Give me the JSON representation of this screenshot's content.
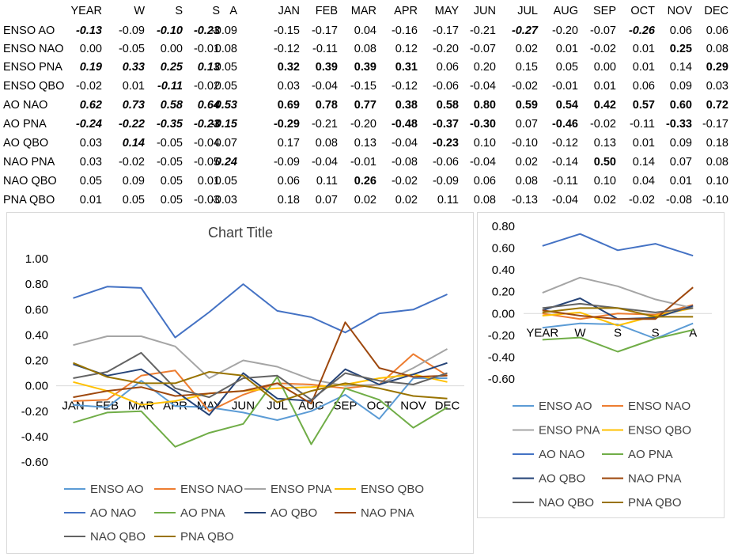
{
  "table": {
    "columns": [
      "YEAR",
      "W",
      "S",
      "S",
      "A",
      "JAN",
      "FEB",
      "MAR",
      "APR",
      "MAY",
      "JUN",
      "JUL",
      "AUG",
      "SEP",
      "OCT",
      "NOV",
      "DEC"
    ],
    "rows": [
      {
        "label": "ENSO AO",
        "values": [
          "-0.13",
          "-0.09",
          "-0.10",
          "-0.23",
          "-0.09",
          "-0.15",
          "-0.17",
          "0.04",
          "-0.16",
          "-0.17",
          "-0.21",
          "-0.27",
          "-0.20",
          "-0.07",
          "-0.26",
          "0.06",
          "0.06"
        ],
        "styles": [
          "bi",
          "",
          "bi",
          "bi",
          "",
          "",
          "",
          "",
          "",
          "",
          "",
          "bi",
          "",
          "",
          "bi",
          "",
          ""
        ]
      },
      {
        "label": "ENSO NAO",
        "values": [
          "0.00",
          "-0.05",
          "0.00",
          "-0.01",
          "0.08",
          "-0.12",
          "-0.11",
          "0.08",
          "0.12",
          "-0.20",
          "-0.07",
          "0.02",
          "0.01",
          "-0.02",
          "0.01",
          "0.25",
          "0.08"
        ],
        "styles": [
          "",
          "",
          "",
          "",
          "",
          "",
          "",
          "",
          "",
          "",
          "",
          "",
          "",
          "",
          "",
          "b",
          ""
        ]
      },
      {
        "label": "ENSO PNA",
        "values": [
          "0.19",
          "0.33",
          "0.25",
          "0.13",
          "0.05",
          "0.32",
          "0.39",
          "0.39",
          "0.31",
          "0.06",
          "0.20",
          "0.15",
          "0.05",
          "0.00",
          "0.01",
          "0.14",
          "0.29"
        ],
        "styles": [
          "bi",
          "bi",
          "bi",
          "bi",
          "",
          "b",
          "b",
          "b",
          "b",
          "",
          "",
          "",
          "",
          "",
          "",
          "",
          "b"
        ]
      },
      {
        "label": "ENSO QBO",
        "values": [
          "-0.02",
          "0.01",
          "-0.11",
          "-0.02",
          "0.05",
          "0.03",
          "-0.04",
          "-0.15",
          "-0.12",
          "-0.06",
          "-0.04",
          "-0.02",
          "-0.01",
          "0.01",
          "0.06",
          "0.09",
          "0.03"
        ],
        "styles": [
          "",
          "",
          "bi",
          "",
          "",
          "",
          "",
          "",
          "",
          "",
          "",
          "",
          "",
          "",
          "",
          "",
          ""
        ]
      },
      {
        "label": "AO NAO",
        "values": [
          "0.62",
          "0.73",
          "0.58",
          "0.64",
          "0.53",
          "0.69",
          "0.78",
          "0.77",
          "0.38",
          "0.58",
          "0.80",
          "0.59",
          "0.54",
          "0.42",
          "0.57",
          "0.60",
          "0.72"
        ],
        "styles": [
          "bi",
          "bi",
          "bi",
          "bi",
          "bi",
          "b",
          "b",
          "b",
          "b",
          "b",
          "b",
          "b",
          "b",
          "b",
          "b",
          "b",
          "b"
        ]
      },
      {
        "label": "AO PNA",
        "values": [
          "-0.24",
          "-0.22",
          "-0.35",
          "-0.23",
          "-0.15",
          "-0.29",
          "-0.21",
          "-0.20",
          "-0.48",
          "-0.37",
          "-0.30",
          "0.07",
          "-0.46",
          "-0.02",
          "-0.11",
          "-0.33",
          "-0.17"
        ],
        "styles": [
          "bi",
          "bi",
          "bi",
          "bi",
          "bi",
          "b",
          "",
          "",
          "b",
          "b",
          "b",
          "",
          "b",
          "",
          "",
          "b",
          ""
        ]
      },
      {
        "label": "AO QBO",
        "values": [
          "0.03",
          "0.14",
          "-0.05",
          "-0.04",
          "0.07",
          "0.17",
          "0.08",
          "0.13",
          "-0.04",
          "-0.23",
          "0.10",
          "-0.10",
          "-0.12",
          "0.13",
          "0.01",
          "0.09",
          "0.18"
        ],
        "styles": [
          "",
          "bi",
          "",
          "",
          "",
          "",
          "",
          "",
          "",
          "b",
          "",
          "",
          "",
          "",
          "",
          "",
          ""
        ]
      },
      {
        "label": "NAO PNA",
        "values": [
          "0.03",
          "-0.02",
          "-0.05",
          "-0.05",
          "0.24",
          "-0.09",
          "-0.04",
          "-0.01",
          "-0.08",
          "-0.06",
          "-0.04",
          "0.02",
          "-0.14",
          "0.50",
          "0.14",
          "0.07",
          "0.08"
        ],
        "styles": [
          "",
          "",
          "",
          "",
          "bi",
          "",
          "",
          "",
          "",
          "",
          "",
          "",
          "",
          "b",
          "",
          "",
          ""
        ]
      },
      {
        "label": "NAO QBO",
        "values": [
          "0.05",
          "0.09",
          "0.05",
          "0.01",
          "0.05",
          "0.06",
          "0.11",
          "0.26",
          "-0.02",
          "-0.09",
          "0.06",
          "0.08",
          "-0.11",
          "0.10",
          "0.04",
          "0.01",
          "0.10"
        ],
        "styles": [
          "",
          "",
          "",
          "",
          "",
          "",
          "",
          "b",
          "",
          "",
          "",
          "",
          "",
          "",
          "",
          "",
          ""
        ]
      },
      {
        "label": "PNA QBO",
        "values": [
          "0.01",
          "0.05",
          "0.05",
          "-0.03",
          "-0.03",
          "0.18",
          "0.07",
          "0.02",
          "0.02",
          "0.11",
          "0.08",
          "-0.13",
          "-0.04",
          "0.02",
          "-0.02",
          "-0.08",
          "-0.10"
        ],
        "styles": [
          "",
          "",
          "",
          "",
          "",
          "",
          "",
          "",
          "",
          "",
          "",
          "",
          "",
          "",
          "",
          "",
          ""
        ]
      }
    ]
  },
  "chart_data": [
    {
      "type": "line",
      "title": "Chart Title",
      "categories": [
        "JAN",
        "FEB",
        "MAR",
        "APR",
        "MAY",
        "JUN",
        "JUL",
        "AUG",
        "SEP",
        "OCT",
        "NOV",
        "DEC"
      ],
      "ylim": [
        -0.6,
        1.0
      ],
      "yticks": [
        "1.00",
        "0.80",
        "0.60",
        "0.40",
        "0.20",
        "0.00",
        "-0.20",
        "-0.40",
        "-0.60"
      ],
      "grid": false,
      "legend": "bottom",
      "series": [
        {
          "name": "ENSO AO",
          "color": "#5B9BD5",
          "values": [
            -0.15,
            -0.17,
            0.04,
            -0.16,
            -0.17,
            -0.21,
            -0.27,
            -0.2,
            -0.07,
            -0.26,
            0.06,
            0.06
          ]
        },
        {
          "name": "ENSO NAO",
          "color": "#ED7D31",
          "values": [
            -0.12,
            -0.11,
            0.08,
            0.12,
            -0.2,
            -0.07,
            0.02,
            0.01,
            -0.02,
            0.01,
            0.25,
            0.08
          ]
        },
        {
          "name": "ENSO PNA",
          "color": "#A5A5A5",
          "values": [
            0.32,
            0.39,
            0.39,
            0.31,
            0.06,
            0.2,
            0.15,
            0.05,
            0.0,
            0.01,
            0.14,
            0.29
          ]
        },
        {
          "name": "ENSO QBO",
          "color": "#FFC000",
          "values": [
            0.03,
            -0.04,
            -0.15,
            -0.12,
            -0.06,
            -0.04,
            -0.02,
            -0.01,
            0.01,
            0.06,
            0.09,
            0.03
          ]
        },
        {
          "name": "AO NAO",
          "color": "#4472C4",
          "values": [
            0.69,
            0.78,
            0.77,
            0.38,
            0.58,
            0.8,
            0.59,
            0.54,
            0.42,
            0.57,
            0.6,
            0.72
          ]
        },
        {
          "name": "AO PNA",
          "color": "#70AD47",
          "values": [
            -0.29,
            -0.21,
            -0.2,
            -0.48,
            -0.37,
            -0.3,
            0.07,
            -0.46,
            -0.02,
            -0.11,
            -0.33,
            -0.17
          ]
        },
        {
          "name": "AO QBO",
          "color": "#264478",
          "values": [
            0.17,
            0.08,
            0.13,
            -0.04,
            -0.23,
            0.1,
            -0.1,
            -0.12,
            0.13,
            0.01,
            0.09,
            0.18
          ]
        },
        {
          "name": "NAO PNA",
          "color": "#9E480E",
          "values": [
            -0.09,
            -0.04,
            -0.01,
            -0.08,
            -0.06,
            -0.04,
            0.02,
            -0.14,
            0.5,
            0.14,
            0.07,
            0.08
          ]
        },
        {
          "name": "NAO QBO",
          "color": "#636363",
          "values": [
            0.06,
            0.11,
            0.26,
            -0.02,
            -0.09,
            0.06,
            0.08,
            -0.11,
            0.1,
            0.04,
            0.01,
            0.1
          ]
        },
        {
          "name": "PNA QBO",
          "color": "#997300",
          "values": [
            0.18,
            0.07,
            0.02,
            0.02,
            0.11,
            0.08,
            -0.13,
            -0.04,
            0.02,
            -0.02,
            -0.08,
            -0.1
          ]
        }
      ]
    },
    {
      "type": "line",
      "title": "",
      "categories": [
        "YEAR",
        "W",
        "S",
        "S",
        "A"
      ],
      "ylim": [
        -0.6,
        0.8
      ],
      "yticks": [
        "0.80",
        "0.60",
        "0.40",
        "0.20",
        "0.00",
        "-0.20",
        "-0.40",
        "-0.60"
      ],
      "grid": false,
      "legend": "bottom",
      "series": [
        {
          "name": "ENSO AO",
          "color": "#5B9BD5",
          "values": [
            -0.13,
            -0.09,
            -0.1,
            -0.23,
            -0.09
          ]
        },
        {
          "name": "ENSO NAO",
          "color": "#ED7D31",
          "values": [
            0.0,
            -0.05,
            0.0,
            -0.01,
            0.08
          ]
        },
        {
          "name": "ENSO PNA",
          "color": "#A5A5A5",
          "values": [
            0.19,
            0.33,
            0.25,
            0.13,
            0.05
          ]
        },
        {
          "name": "ENSO QBO",
          "color": "#FFC000",
          "values": [
            -0.02,
            0.01,
            -0.11,
            -0.02,
            0.05
          ]
        },
        {
          "name": "AO NAO",
          "color": "#4472C4",
          "values": [
            0.62,
            0.73,
            0.58,
            0.64,
            0.53
          ]
        },
        {
          "name": "AO PNA",
          "color": "#70AD47",
          "values": [
            -0.24,
            -0.22,
            -0.35,
            -0.23,
            -0.15
          ]
        },
        {
          "name": "AO QBO",
          "color": "#264478",
          "values": [
            0.03,
            0.14,
            -0.05,
            -0.04,
            0.07
          ]
        },
        {
          "name": "NAO PNA",
          "color": "#9E480E",
          "values": [
            0.03,
            -0.02,
            -0.05,
            -0.05,
            0.24
          ]
        },
        {
          "name": "NAO QBO",
          "color": "#636363",
          "values": [
            0.05,
            0.09,
            0.05,
            0.01,
            0.05
          ]
        },
        {
          "name": "PNA QBO",
          "color": "#997300",
          "values": [
            0.01,
            0.05,
            0.05,
            -0.03,
            -0.03
          ]
        }
      ]
    }
  ]
}
